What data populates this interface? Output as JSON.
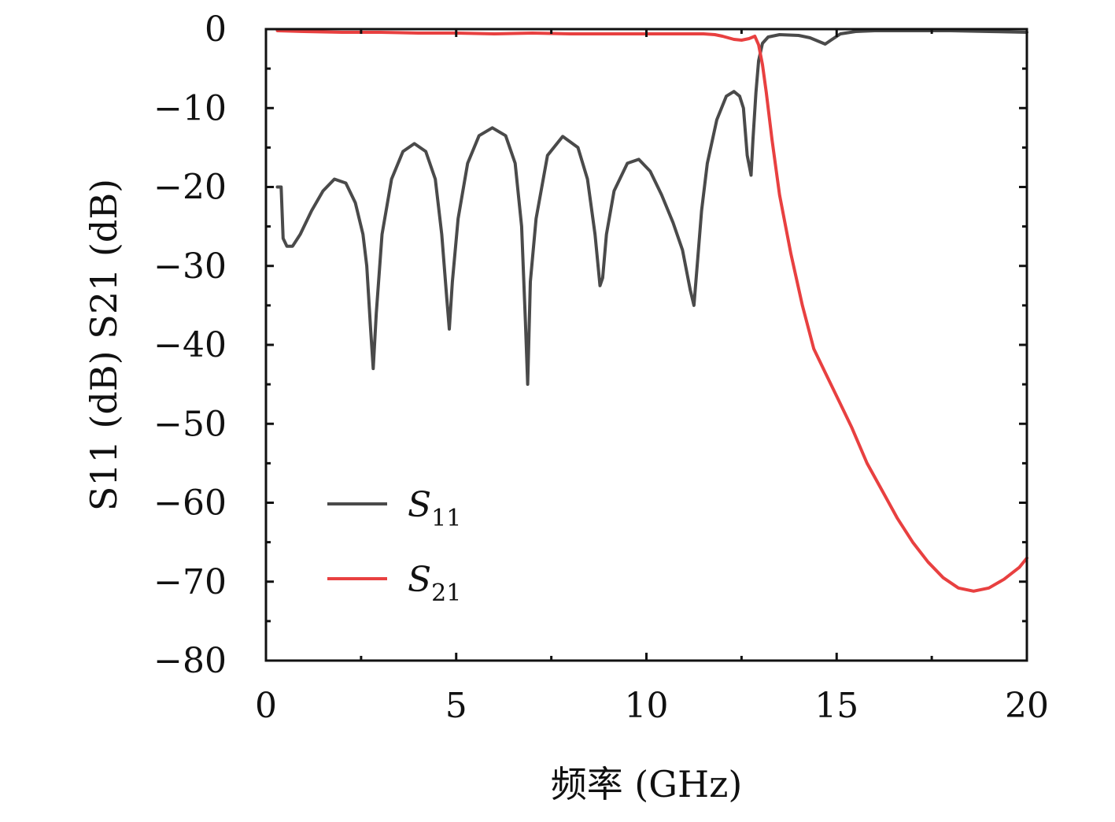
{
  "chart_data": {
    "type": "line",
    "xlabel": "频率 (GHz)",
    "ylabel": "S11 (dB) S21 (dB)",
    "xlim": [
      0,
      20
    ],
    "ylim": [
      -80,
      0
    ],
    "xticks": [
      0,
      5,
      10,
      15,
      20
    ],
    "xtick_labels": [
      "0",
      "5",
      "10",
      "15",
      "20"
    ],
    "yticks": [
      0,
      -10,
      -20,
      -30,
      -40,
      -50,
      -60,
      -70,
      -80
    ],
    "ytick_labels": [
      "0",
      "−10",
      "−20",
      "−30",
      "−40",
      "−50",
      "−60",
      "−70",
      "−80"
    ],
    "grid": false,
    "legend_position": "bottom-left",
    "series": [
      {
        "name": "S11",
        "legend_main": "S",
        "legend_sub": "11",
        "color": "#4a4a4a",
        "x": [
          0.3,
          0.4,
          0.45,
          0.55,
          0.7,
          0.9,
          1.2,
          1.5,
          1.8,
          2.1,
          2.35,
          2.55,
          2.65,
          2.75,
          2.82,
          2.9,
          3.05,
          3.3,
          3.6,
          3.9,
          4.2,
          4.45,
          4.62,
          4.75,
          4.82,
          4.9,
          5.05,
          5.3,
          5.6,
          5.95,
          6.3,
          6.55,
          6.72,
          6.82,
          6.88,
          6.95,
          7.1,
          7.4,
          7.8,
          8.2,
          8.45,
          8.65,
          8.78,
          8.85,
          8.95,
          9.15,
          9.5,
          9.8,
          10.1,
          10.4,
          10.7,
          10.95,
          11.15,
          11.25,
          11.35,
          11.45,
          11.6,
          11.85,
          12.1,
          12.3,
          12.45,
          12.55,
          12.65,
          12.75,
          12.8,
          12.88,
          12.95,
          13.05,
          13.2,
          13.5,
          14.0,
          14.3,
          14.55,
          14.7,
          14.85,
          15.1,
          15.5,
          16.0,
          17.0,
          18.0,
          19.0,
          20.0
        ],
        "y": [
          -20,
          -20,
          -26.5,
          -27.5,
          -27.5,
          -26,
          -23,
          -20.5,
          -19,
          -19.5,
          -22,
          -26,
          -30,
          -38,
          -43,
          -36,
          -26,
          -19,
          -15.5,
          -14.5,
          -15.5,
          -19,
          -26,
          -34,
          -38,
          -32,
          -24,
          -17,
          -13.5,
          -12.5,
          -13.5,
          -17,
          -25,
          -37,
          -45,
          -32,
          -24,
          -16,
          -13.6,
          -15,
          -19,
          -26,
          -32.5,
          -31.5,
          -26,
          -20.5,
          -17,
          -16.5,
          -18,
          -21,
          -24.5,
          -28,
          -33,
          -35,
          -29,
          -23,
          -17,
          -11.5,
          -8.5,
          -7.9,
          -8.5,
          -10,
          -16,
          -18.5,
          -14,
          -8,
          -4,
          -1.8,
          -1,
          -0.7,
          -0.8,
          -1.1,
          -1.6,
          -1.9,
          -1.4,
          -0.6,
          -0.3,
          -0.2,
          -0.2,
          -0.2,
          -0.3,
          -0.4
        ]
      },
      {
        "name": "S21",
        "legend_main": "S",
        "legend_sub": "21",
        "color": "#e84040",
        "x": [
          0.3,
          1,
          2,
          3,
          4,
          5,
          6,
          7,
          8,
          9,
          10,
          11,
          11.5,
          11.8,
          12.0,
          12.3,
          12.5,
          12.7,
          12.85,
          12.95,
          13.05,
          13.15,
          13.3,
          13.5,
          13.8,
          14.1,
          14.4,
          14.7,
          15.0,
          15.4,
          15.8,
          16.2,
          16.6,
          17.0,
          17.4,
          17.8,
          18.2,
          18.6,
          19.0,
          19.4,
          19.8,
          20.0
        ],
        "y": [
          -0.2,
          -0.3,
          -0.4,
          -0.4,
          -0.5,
          -0.5,
          -0.6,
          -0.5,
          -0.6,
          -0.6,
          -0.6,
          -0.6,
          -0.6,
          -0.7,
          -0.9,
          -1.3,
          -1.4,
          -1.2,
          -0.9,
          -2,
          -4.5,
          -8,
          -14,
          -21,
          -28.5,
          -35,
          -40.5,
          -43.5,
          -46.5,
          -50.5,
          -55,
          -58.5,
          -62,
          -65,
          -67.5,
          -69.5,
          -70.8,
          -71.2,
          -70.8,
          -69.7,
          -68.2,
          -67
        ]
      }
    ]
  }
}
